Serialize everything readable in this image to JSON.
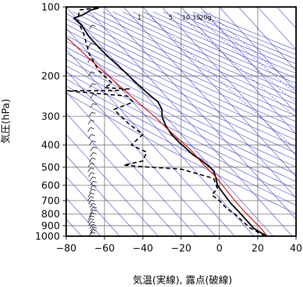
{
  "chart_data": {
    "type": "line",
    "xlabel": "気温(実線), 露点(破線)",
    "ylabel": "気圧(hPa)",
    "xlim": [
      -80,
      40
    ],
    "ylim": [
      1000,
      100
    ],
    "yscale": "log",
    "x_ticks": [
      -80,
      -60,
      -40,
      -20,
      0,
      20,
      40
    ],
    "y_ticks": [
      100,
      200,
      300,
      400,
      500,
      600,
      700,
      800,
      900,
      1000
    ],
    "grid": true,
    "mixing_ratio_labels": [
      "1",
      "5",
      "10",
      "15",
      "20g"
    ],
    "colors": {
      "temperature": "#000000",
      "dewpoint": "#000000",
      "parcel": "#cc0000",
      "isotherm": "#3333cc",
      "dry_adiabat": "#3333cc",
      "mixing_ratio": "#3333cc",
      "grid": "#666666"
    },
    "series": [
      {
        "style": "solid",
        "points": [
          [
            25,
            1000
          ],
          [
            22,
            970
          ],
          [
            18,
            925
          ],
          [
            14,
            850
          ],
          [
            10,
            780
          ],
          [
            6,
            720
          ],
          [
            2,
            650
          ],
          [
            -1,
            600
          ],
          [
            -2,
            550
          ],
          [
            -3,
            520
          ],
          [
            -5,
            500
          ],
          [
            -9,
            470
          ],
          [
            -14,
            440
          ],
          [
            -18,
            410
          ],
          [
            -21,
            390
          ],
          [
            -25,
            360
          ],
          [
            -28,
            330
          ],
          [
            -30,
            300
          ],
          [
            -30,
            280
          ],
          [
            -32,
            260
          ],
          [
            -37,
            240
          ],
          [
            -42,
            220
          ],
          [
            -50,
            190
          ],
          [
            -58,
            165
          ],
          [
            -63,
            150
          ],
          [
            -68,
            135
          ],
          [
            -72,
            120
          ],
          [
            -76,
            112
          ],
          [
            -71,
            108
          ],
          [
            -67,
            103
          ],
          [
            -63,
            101
          ]
        ]
      },
      {
        "style": "dashed",
        "points": [
          [
            24,
            1000
          ],
          [
            20,
            960
          ],
          [
            16,
            920
          ],
          [
            12,
            860
          ],
          [
            8,
            800
          ],
          [
            4,
            760
          ],
          [
            0,
            700
          ],
          [
            -4,
            660
          ],
          [
            -1,
            620
          ],
          [
            -3,
            560
          ],
          [
            -20,
            510
          ],
          [
            -44,
            495
          ],
          [
            -50,
            490
          ],
          [
            -40,
            470
          ],
          [
            -38,
            430
          ],
          [
            -46,
            400
          ],
          [
            -40,
            360
          ],
          [
            -48,
            320
          ],
          [
            -55,
            280
          ],
          [
            -45,
            260
          ],
          [
            -48,
            245
          ],
          [
            -80,
            232
          ],
          [
            -55,
            232
          ],
          [
            -47,
            228
          ],
          [
            -60,
            225
          ],
          [
            -56,
            215
          ],
          [
            -63,
            190
          ],
          [
            -68,
            160
          ],
          [
            -71,
            130
          ],
          [
            -74,
            115
          ],
          [
            -73,
            103
          ],
          [
            -64,
            101
          ]
        ]
      },
      {
        "style": "solid",
        "points": [
          [
            25,
            1000
          ],
          [
            22,
            930
          ],
          [
            18,
            860
          ],
          [
            13,
            780
          ],
          [
            8,
            700
          ],
          [
            3,
            620
          ],
          [
            -2,
            550
          ],
          [
            -8,
            490
          ],
          [
            -15,
            420
          ],
          [
            -24,
            360
          ],
          [
            -34,
            300
          ],
          [
            -45,
            250
          ],
          [
            -58,
            200
          ],
          [
            -69,
            165
          ],
          [
            -78,
            140
          ],
          [
            -88,
            120
          ]
        ]
      }
    ]
  }
}
